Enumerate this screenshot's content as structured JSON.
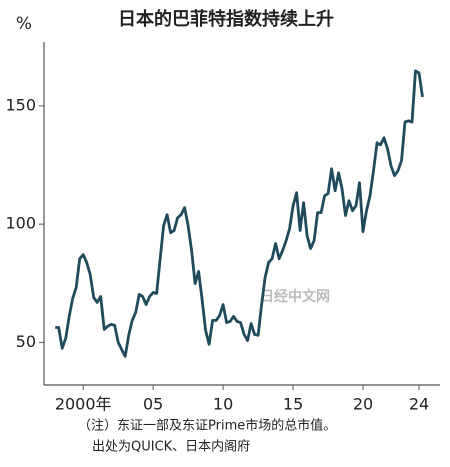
{
  "chart_data": {
    "type": "line",
    "title": "日本的巴菲特指数持续上升",
    "y_label": "%",
    "watermark": "日经中文网",
    "notes": [
      "（注）东证一部及东证Prime市场的总市值。",
      "出处为QUICK、日本内阁府"
    ],
    "x": [
      1998,
      1998.25,
      1998.5,
      1998.75,
      1999,
      1999.25,
      1999.5,
      1999.75,
      2000,
      2000.25,
      2000.5,
      2000.75,
      2001,
      2001.25,
      2001.5,
      2001.75,
      2002,
      2002.25,
      2002.5,
      2002.75,
      2003,
      2003.25,
      2003.5,
      2003.75,
      2004,
      2004.25,
      2004.5,
      2004.75,
      2005,
      2005.25,
      2005.5,
      2005.75,
      2006,
      2006.25,
      2006.5,
      2006.75,
      2007,
      2007.25,
      2007.5,
      2007.75,
      2008,
      2008.25,
      2008.5,
      2008.75,
      2009,
      2009.25,
      2009.5,
      2009.75,
      2010,
      2010.25,
      2010.5,
      2010.75,
      2011,
      2011.25,
      2011.5,
      2011.75,
      2012,
      2012.25,
      2012.5,
      2012.75,
      2013,
      2013.25,
      2013.5,
      2013.75,
      2014,
      2014.25,
      2014.5,
      2014.75,
      2015,
      2015.25,
      2015.5,
      2015.75,
      2016,
      2016.25,
      2016.5,
      2016.75,
      2017,
      2017.25,
      2017.5,
      2017.75,
      2018,
      2018.25,
      2018.5,
      2018.75,
      2019,
      2019.25,
      2019.5,
      2019.75,
      2020,
      2020.25,
      2020.5,
      2020.75,
      2021,
      2021.25,
      2021.5,
      2021.75,
      2022,
      2022.25,
      2022.5,
      2022.75,
      2023,
      2023.25,
      2023.5,
      2023.75,
      2024,
      2024.25
    ],
    "series": [
      {
        "color": "#1f4b5c",
        "values": [
          56.3,
          56.3,
          47.5,
          51.7,
          61,
          68.6,
          73.2,
          85.4,
          87.1,
          83.8,
          78.7,
          69,
          66.9,
          69.4,
          55.5,
          56.8,
          57.6,
          57.2,
          50,
          47,
          44.1,
          53,
          59.3,
          62.7,
          70.3,
          69.4,
          66,
          69.4,
          71.1,
          70.7,
          85,
          99.4,
          104,
          96.4,
          97.3,
          102.7,
          104,
          107,
          99.4,
          88.8,
          74.9,
          80,
          68.1,
          55.1,
          49.2,
          59.3,
          59.3,
          61.4,
          66,
          58.4,
          58.9,
          61,
          58.9,
          58.4,
          53.4,
          50.8,
          58,
          53.4,
          53,
          66,
          77.4,
          83.8,
          85.4,
          91.8,
          85.4,
          88.8,
          93,
          98.1,
          107.8,
          113.3,
          97.3,
          109.1,
          95.1,
          89.7,
          93,
          104.9,
          104.9,
          112,
          112.9,
          123.4,
          114.1,
          121.7,
          115,
          103.6,
          109.9,
          105.7,
          107.8,
          117.5,
          96.8,
          105.7,
          112,
          122.6,
          134.4,
          133.5,
          136.5,
          131.9,
          124.7,
          120.5,
          122.6,
          126.8,
          143.2,
          143.7,
          143.2,
          164.8,
          163.9,
          153.8
        ]
      }
    ],
    "xlim": [
      1997.2,
      2025.5
    ],
    "xticks": [
      {
        "value": 2000,
        "label": "2000年"
      },
      {
        "value": 2005,
        "label": "05"
      },
      {
        "value": 2010,
        "label": "10"
      },
      {
        "value": 2015,
        "label": "15"
      },
      {
        "value": 2020,
        "label": "20"
      },
      {
        "value": 2024,
        "label": "24"
      }
    ],
    "ylim": [
      32,
      177
    ],
    "yticks": [
      50,
      100,
      150
    ]
  }
}
